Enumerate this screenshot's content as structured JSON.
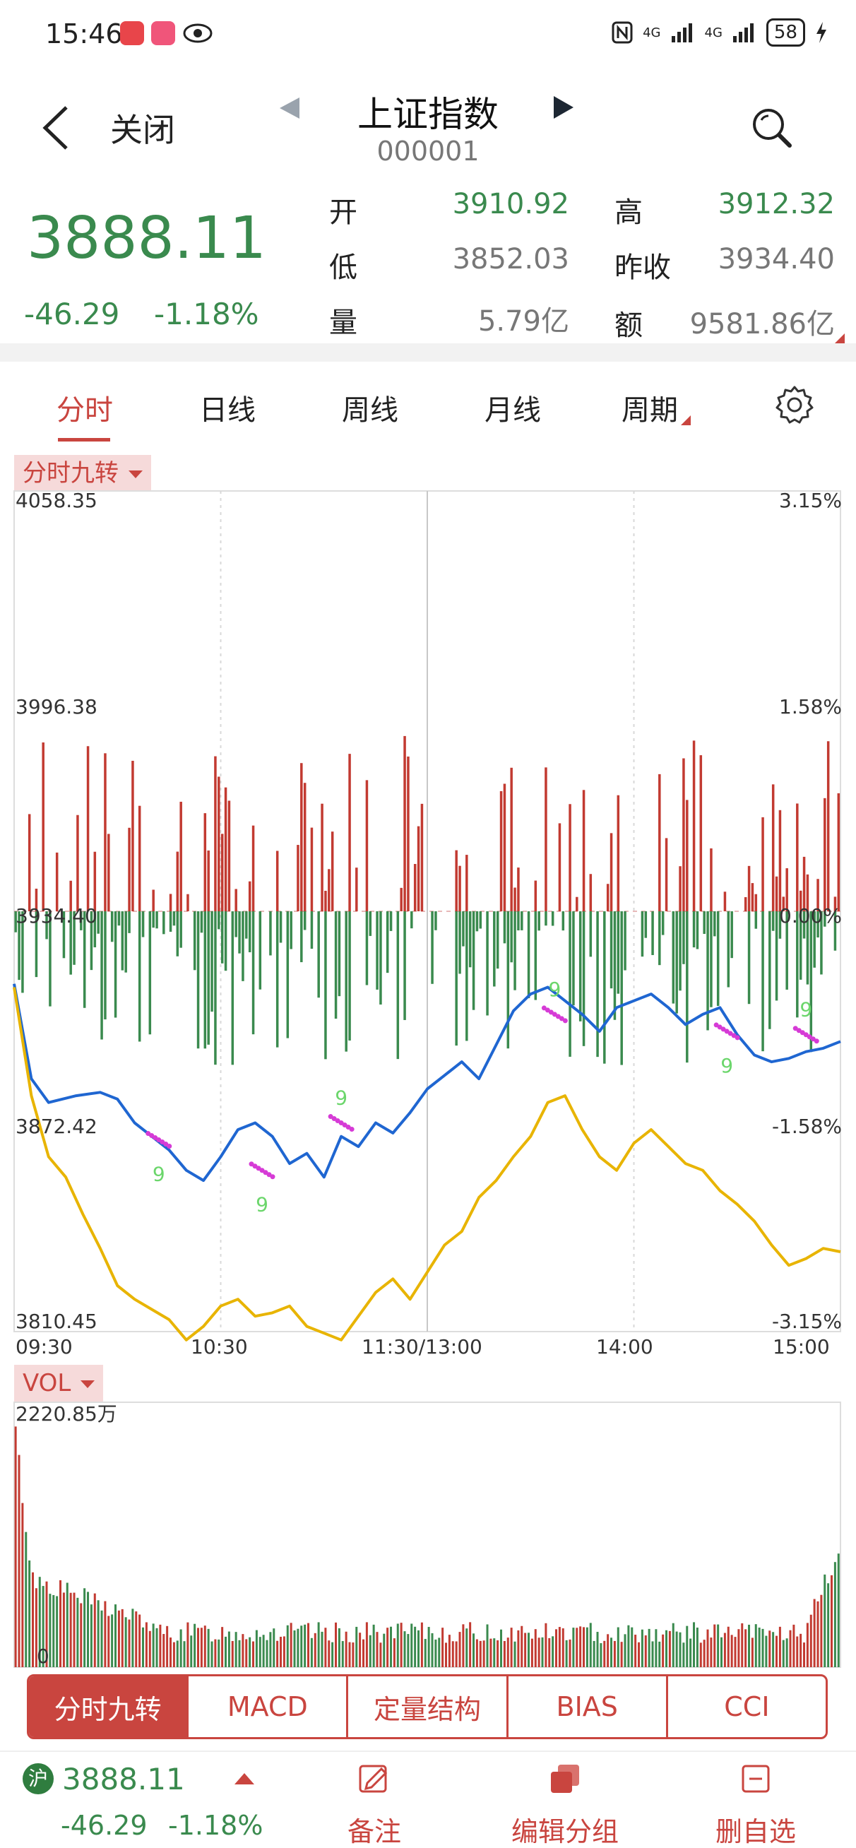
{
  "status_bar": {
    "time": "15:46",
    "network": "4G",
    "network2": "4G",
    "battery": "58",
    "icons": [
      "shop-app-icon",
      "character-app-icon",
      "eye-icon",
      "nfc-icon",
      "signal-icon",
      "signal-icon",
      "battery-icon",
      "charging-icon"
    ]
  },
  "header": {
    "close_label": "关闭",
    "title": "上证指数",
    "code": "000001"
  },
  "quote": {
    "price": "3888.11",
    "change": "-46.29",
    "change_pct": "-1.18%",
    "fields": [
      {
        "label": "开",
        "value": "3910.92"
      },
      {
        "label": "高",
        "value": "3912.32"
      },
      {
        "label": "低",
        "value": "3852.03"
      },
      {
        "label": "昨收",
        "value": "3934.40"
      },
      {
        "label": "量",
        "value": "5.79亿"
      },
      {
        "label": "额",
        "value": "9581.86亿"
      }
    ]
  },
  "tabs": [
    "分时",
    "日线",
    "周线",
    "月线",
    "周期"
  ],
  "indicator_tag": "分时九转",
  "vol_tag": "VOL",
  "chart_data": {
    "type": "line",
    "price_axis_left": [
      "4058.35",
      "3996.38",
      "3934.40",
      "3872.42",
      "3810.45"
    ],
    "price_axis_right": [
      "3.15%",
      "1.58%",
      "0.00%",
      "-1.58%",
      "-3.15%"
    ],
    "time_axis": [
      "09:30",
      "10:30",
      "11:30/13:00",
      "14:00",
      "15:00"
    ],
    "ylim": [
      3810.45,
      4058.35
    ],
    "prev_close": 3934.4,
    "series": [
      {
        "color": "#1f66d1",
        "x": [
          0,
          5,
          10,
          18,
          25,
          30,
          35,
          40,
          45,
          50,
          55,
          60,
          65,
          70,
          75,
          80,
          85,
          90,
          95,
          100,
          105,
          110,
          115,
          120,
          125,
          130,
          135,
          140,
          145,
          150,
          155,
          160,
          165,
          170,
          175,
          180,
          185,
          190,
          195,
          200,
          205,
          210,
          215,
          220,
          225,
          230,
          235,
          240
        ],
        "values": [
          3913,
          3885,
          3878,
          3880,
          3881,
          3879,
          3872,
          3868,
          3864,
          3858,
          3855,
          3862,
          3870,
          3872,
          3868,
          3860,
          3863,
          3856,
          3868,
          3865,
          3872,
          3869,
          3875,
          3882,
          3886,
          3890,
          3885,
          3895,
          3905,
          3910,
          3912,
          3908,
          3904,
          3899,
          3906,
          3908,
          3910,
          3906,
          3901,
          3904,
          3906,
          3898,
          3892,
          3890,
          3891,
          3893,
          3894,
          3896
        ]
      },
      {
        "color": "#e8b400",
        "x": [
          0,
          5,
          10,
          15,
          20,
          25,
          30,
          35,
          40,
          45,
          50,
          55,
          60,
          65,
          70,
          75,
          80,
          85,
          90,
          95,
          100,
          105,
          110,
          115,
          120,
          125,
          130,
          135,
          140,
          145,
          150,
          155,
          160,
          165,
          170,
          175,
          180,
          185,
          190,
          195,
          200,
          205,
          210,
          215,
          220,
          225,
          230,
          235,
          240
        ],
        "values": [
          3912,
          3880,
          3862,
          3856,
          3845,
          3835,
          3824,
          3820,
          3817,
          3814,
          3808,
          3812,
          3818,
          3820,
          3815,
          3816,
          3818,
          3812,
          3810,
          3808,
          3815,
          3822,
          3826,
          3820,
          3828,
          3836,
          3840,
          3850,
          3855,
          3862,
          3868,
          3878,
          3880,
          3870,
          3862,
          3858,
          3866,
          3870,
          3865,
          3860,
          3858,
          3852,
          3848,
          3843,
          3836,
          3830,
          3832,
          3835,
          3834
        ]
      }
    ],
    "nine_markers": [
      {
        "x": 42,
        "y": 3867,
        "label": "9",
        "pos": "below"
      },
      {
        "x": 72,
        "y": 3858,
        "label": "9",
        "pos": "below"
      },
      {
        "x": 95,
        "y": 3872,
        "label": "9",
        "pos": "above"
      },
      {
        "x": 157,
        "y": 3904,
        "label": "9",
        "pos": "above"
      },
      {
        "x": 207,
        "y": 3899,
        "label": "9",
        "pos": "below"
      },
      {
        "x": 230,
        "y": 3898,
        "label": "9",
        "pos": "above"
      }
    ],
    "vol_axis_top": "2220.85万",
    "vol_axis_bottom": "0"
  },
  "indicator_buttons": [
    "分时九转",
    "MACD",
    "定量结构",
    "BIAS",
    "CCI"
  ],
  "bottom_bar": {
    "market": "沪",
    "price": "3888.11",
    "change": "-46.29",
    "change_pct": "-1.18%",
    "actions": [
      "备注",
      "编辑分组",
      "删自选"
    ]
  }
}
